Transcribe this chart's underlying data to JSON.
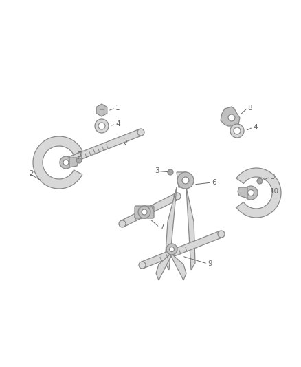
{
  "bg_color": "#ffffff",
  "ec": "#888888",
  "lw": 0.9,
  "fc_light": "#d8d8d8",
  "fc_mid": "#c0c0c0",
  "fc_dark": "#a8a8a8",
  "label_color": "#666666",
  "label_fs": 7.5,
  "figsize": [
    4.38,
    5.33
  ],
  "dpi": 100
}
